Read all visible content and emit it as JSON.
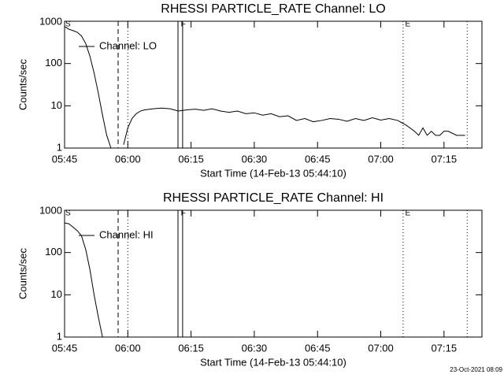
{
  "chart_data": [
    {
      "type": "line",
      "title": "RHESSI PARTICLE_RATE Channel: LO",
      "xlabel": "Start Time (14-Feb-13 05:44:10)",
      "ylabel": "Counts/sec",
      "x": [
        345,
        346,
        347,
        348,
        349,
        350,
        351,
        352,
        353,
        354,
        355,
        356,
        357,
        359,
        360,
        361,
        362,
        363,
        364,
        366,
        368,
        370,
        372,
        374,
        376,
        378,
        380,
        382,
        384,
        386,
        388,
        390,
        392,
        394,
        396,
        398,
        400,
        402,
        404,
        406,
        408,
        410,
        412,
        414,
        416,
        418,
        420,
        422,
        424,
        426,
        428,
        429,
        430,
        431,
        432,
        433,
        434,
        435,
        436,
        438,
        440
      ],
      "series": [
        {
          "name": "Channel: LO",
          "color": "#000000",
          "values": [
            750,
            650,
            600,
            550,
            450,
            300,
            150,
            60,
            20,
            6,
            2,
            1,
            null,
            1.2,
            3,
            5,
            6.5,
            7.5,
            8,
            8.5,
            8.8,
            8.5,
            7.5,
            8,
            8.3,
            7.8,
            8.5,
            7.5,
            7,
            7.5,
            6.5,
            6.8,
            6,
            6.5,
            5.5,
            5.8,
            4.5,
            5,
            4.2,
            4.5,
            5,
            4.8,
            4.3,
            5,
            4.5,
            5.2,
            4.6,
            5,
            4.5,
            3.5,
            2.5,
            2,
            3,
            2,
            2.5,
            2,
            2,
            2.5,
            2.5,
            2,
            2
          ]
        }
      ],
      "xlim": [
        345,
        444
      ],
      "ylim": [
        1,
        1000
      ],
      "log_y": true,
      "xticks": [
        {
          "value": 345,
          "label": "05:45"
        },
        {
          "value": 360,
          "label": "06:00"
        },
        {
          "value": 375,
          "label": "06:15"
        },
        {
          "value": 390,
          "label": "06:30"
        },
        {
          "value": 405,
          "label": "06:45"
        },
        {
          "value": 420,
          "label": "07:00"
        },
        {
          "value": 435,
          "label": "07:15"
        }
      ],
      "yticks": [
        1,
        10,
        100,
        1000
      ],
      "vlines": [
        {
          "x": 357.7,
          "style": "dashed"
        },
        {
          "x": 360,
          "style": "dotted"
        },
        {
          "x": 371.9,
          "style": "solid"
        },
        {
          "x": 373,
          "style": "solid"
        },
        {
          "x": 425.3,
          "style": "dotted"
        },
        {
          "x": 440.5,
          "style": "dotted"
        }
      ],
      "flags": [
        {
          "label": "S",
          "x": 345
        },
        {
          "label": "F",
          "x": 372.4
        },
        {
          "label": "E",
          "x": 425.6
        }
      ]
    },
    {
      "type": "line",
      "title": "RHESSI PARTICLE_RATE Channel: HI",
      "xlabel": "Start Time (14-Feb-13 05:44:10)",
      "ylabel": "Counts/sec",
      "x": [
        345,
        346,
        347,
        348,
        349,
        350,
        351,
        352,
        353,
        354
      ],
      "series": [
        {
          "name": "Channel: HI",
          "color": "#000000",
          "values": [
            500,
            480,
            400,
            330,
            250,
            120,
            40,
            10,
            3,
            1
          ]
        }
      ],
      "xlim": [
        345,
        444
      ],
      "ylim": [
        1,
        1000
      ],
      "log_y": true,
      "xticks": [
        {
          "value": 345,
          "label": "05:45"
        },
        {
          "value": 360,
          "label": "06:00"
        },
        {
          "value": 375,
          "label": "06:15"
        },
        {
          "value": 390,
          "label": "06:30"
        },
        {
          "value": 405,
          "label": "06:45"
        },
        {
          "value": 420,
          "label": "07:00"
        },
        {
          "value": 435,
          "label": "07:15"
        }
      ],
      "yticks": [
        1,
        10,
        100,
        1000
      ],
      "vlines": [
        {
          "x": 357.7,
          "style": "dashed"
        },
        {
          "x": 360,
          "style": "dotted"
        },
        {
          "x": 371.9,
          "style": "solid"
        },
        {
          "x": 373,
          "style": "solid"
        },
        {
          "x": 425.3,
          "style": "dotted"
        },
        {
          "x": 440.5,
          "style": "dotted"
        }
      ],
      "flags": [
        {
          "label": "S",
          "x": 345
        },
        {
          "label": "F",
          "x": 372.4
        },
        {
          "label": "E",
          "x": 425.6
        }
      ]
    }
  ],
  "footer": "23-Oct-2021 08:09"
}
